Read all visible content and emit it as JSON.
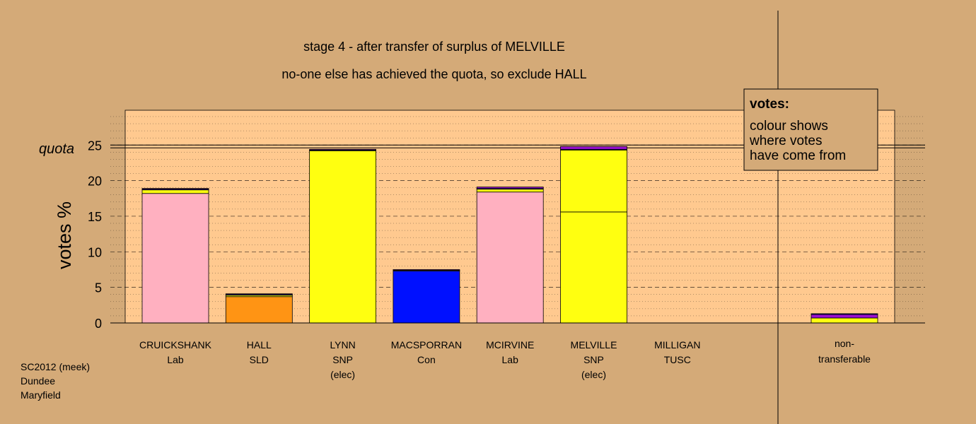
{
  "title_line1": "stage 4 - after transfer of surplus of MELVILLE",
  "title_line2": "no-one else has achieved the quota, so exclude HALL",
  "ylabel": "votes %",
  "quota_label": "quota",
  "footer": [
    "SC2012 (meek)",
    "Dundee",
    "Maryfield"
  ],
  "legend": {
    "title": "votes:",
    "lines": [
      "colour shows",
      "where votes",
      "have come from"
    ]
  },
  "colors": {
    "background": "#D4AA78",
    "plot_area": "#FFC98F",
    "Lab": "#FFB0C0",
    "SLD": "#FF9414",
    "SNP": "#FFFF10",
    "Con": "#0010FF",
    "other": "#9B10D0",
    "outline": "#000000"
  },
  "chart_data": {
    "type": "bar",
    "stacked": true,
    "ylim": [
      0,
      29
    ],
    "yticks": [
      "0",
      "5",
      "10",
      "15",
      "20",
      "25"
    ],
    "quota": 24.8,
    "grid": "dashed horizontal",
    "legend_placement": "top-right",
    "candidates": [
      {
        "name": "CRUICKSHANK",
        "party": "Lab",
        "note": "",
        "segments": [
          {
            "from": "Lab",
            "value": 18.2
          },
          {
            "from": "SNP",
            "value": 0.5
          },
          {
            "from": "Con",
            "value": 0.1
          },
          {
            "from": "other",
            "value": 0.1
          }
        ]
      },
      {
        "name": "HALL",
        "party": "SLD",
        "note": "",
        "segments": [
          {
            "from": "SLD",
            "value": 3.7
          },
          {
            "from": "SNP",
            "value": 0.2
          },
          {
            "from": "Con",
            "value": 0.1
          },
          {
            "from": "other",
            "value": 0.1
          }
        ]
      },
      {
        "name": "LYNN",
        "party": "SNP",
        "note": "(elec)",
        "segments": [
          {
            "from": "SNP",
            "value": 24.2
          },
          {
            "from": "Con",
            "value": 0.1
          },
          {
            "from": "other",
            "value": 0.1
          }
        ]
      },
      {
        "name": "MACSPORRAN",
        "party": "Con",
        "note": "",
        "segments": [
          {
            "from": "Con",
            "value": 7.3
          },
          {
            "from": "SNP",
            "value": 0.1
          },
          {
            "from": "other",
            "value": 0.1
          }
        ]
      },
      {
        "name": "MCIRVINE",
        "party": "Lab",
        "note": "",
        "segments": [
          {
            "from": "Lab",
            "value": 18.4
          },
          {
            "from": "SNP",
            "value": 0.4
          },
          {
            "from": "Con",
            "value": 0.1
          },
          {
            "from": "other",
            "value": 0.2
          }
        ]
      },
      {
        "name": "MELVILLE",
        "party": "SNP",
        "note": "(elec)",
        "segments": [
          {
            "from": "SNP",
            "value": 15.6
          },
          {
            "from": "SNP",
            "value": 8.7
          },
          {
            "from": "Con",
            "value": 0.1
          },
          {
            "from": "other",
            "value": 0.4
          }
        ]
      },
      {
        "name": "MILLIGAN",
        "party": "TUSC",
        "note": "",
        "segments": []
      }
    ],
    "nontransferable": {
      "label_line1": "non-",
      "label_line2": "transferable",
      "segments": [
        {
          "from": "SNP",
          "value": 0.7
        },
        {
          "from": "other",
          "value": 0.5
        },
        {
          "from": "Con",
          "value": 0.1
        }
      ]
    }
  }
}
